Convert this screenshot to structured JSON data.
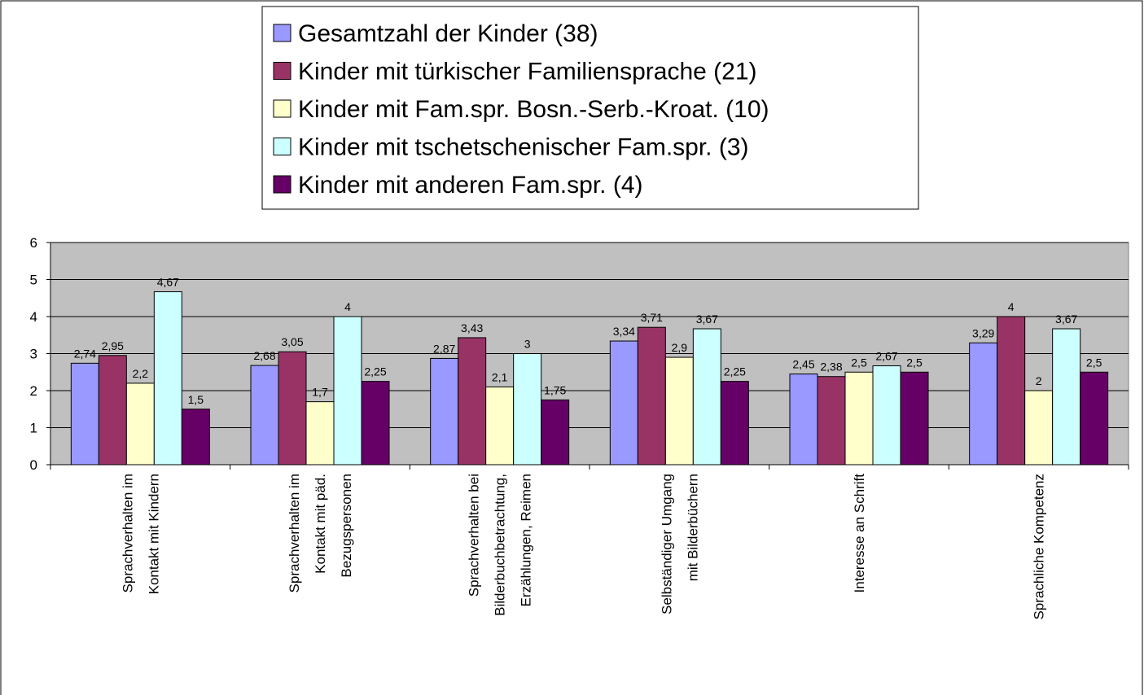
{
  "chart_data": {
    "type": "bar",
    "categories": [
      [
        "Sprachverhalten im",
        "Kontakt mit Kindern"
      ],
      [
        "Sprachverhalten im",
        "Kontakt mit päd.",
        "Bezugspersonen"
      ],
      [
        "Sprachverhalten bei",
        "Bilderbuchbetrachtung,",
        "Erzählungen, Reimen"
      ],
      [
        "Selbständiger Umgang",
        "mit Bilderbüchern"
      ],
      [
        "Interesse an Schrift"
      ],
      [
        "Sprachliche Kompetenz"
      ]
    ],
    "series": [
      {
        "name": "Gesamtzahl der Kinder (38)",
        "color": "#9999ff",
        "values": [
          2.74,
          2.68,
          2.87,
          3.34,
          2.45,
          3.29
        ],
        "value_labels": [
          "2,74",
          "2,68",
          "2,87",
          "3,34",
          "2,45",
          "3,29"
        ]
      },
      {
        "name": "Kinder mit türkischer Familiensprache (21)",
        "color": "#993366",
        "values": [
          2.95,
          3.05,
          3.43,
          3.71,
          2.38,
          4
        ],
        "value_labels": [
          "2,95",
          "3,05",
          "3,43",
          "3,71",
          "2,38",
          "4"
        ]
      },
      {
        "name": "Kinder mit Fam.spr. Bosn.-Serb.-Kroat. (10)",
        "color": "#ffffcc",
        "values": [
          2.2,
          1.7,
          2.1,
          2.9,
          2.5,
          2
        ],
        "value_labels": [
          "2,2",
          "1,7",
          "2,1",
          "2,9",
          "2,5",
          "2"
        ]
      },
      {
        "name": "Kinder mit tschetschenischer Fam.spr. (3)",
        "color": "#ccffff",
        "values": [
          4.67,
          4,
          3,
          3.67,
          2.67,
          3.67
        ],
        "value_labels": [
          "4,67",
          "4",
          "3",
          "3,67",
          "2,67",
          "3,67"
        ]
      },
      {
        "name": "Kinder mit anderen Fam.spr. (4)",
        "color": "#660066",
        "values": [
          1.5,
          2.25,
          1.75,
          2.25,
          2.5,
          2.5
        ],
        "value_labels": [
          "1,5",
          "2,25",
          "1,75",
          "2,25",
          "2,5",
          "2,5"
        ]
      }
    ],
    "ylim": [
      0,
      6
    ],
    "yticks": [
      0,
      1,
      2,
      3,
      4,
      5,
      6
    ],
    "grid": true,
    "plot_background": "#c0c0c0",
    "legend": "top"
  }
}
